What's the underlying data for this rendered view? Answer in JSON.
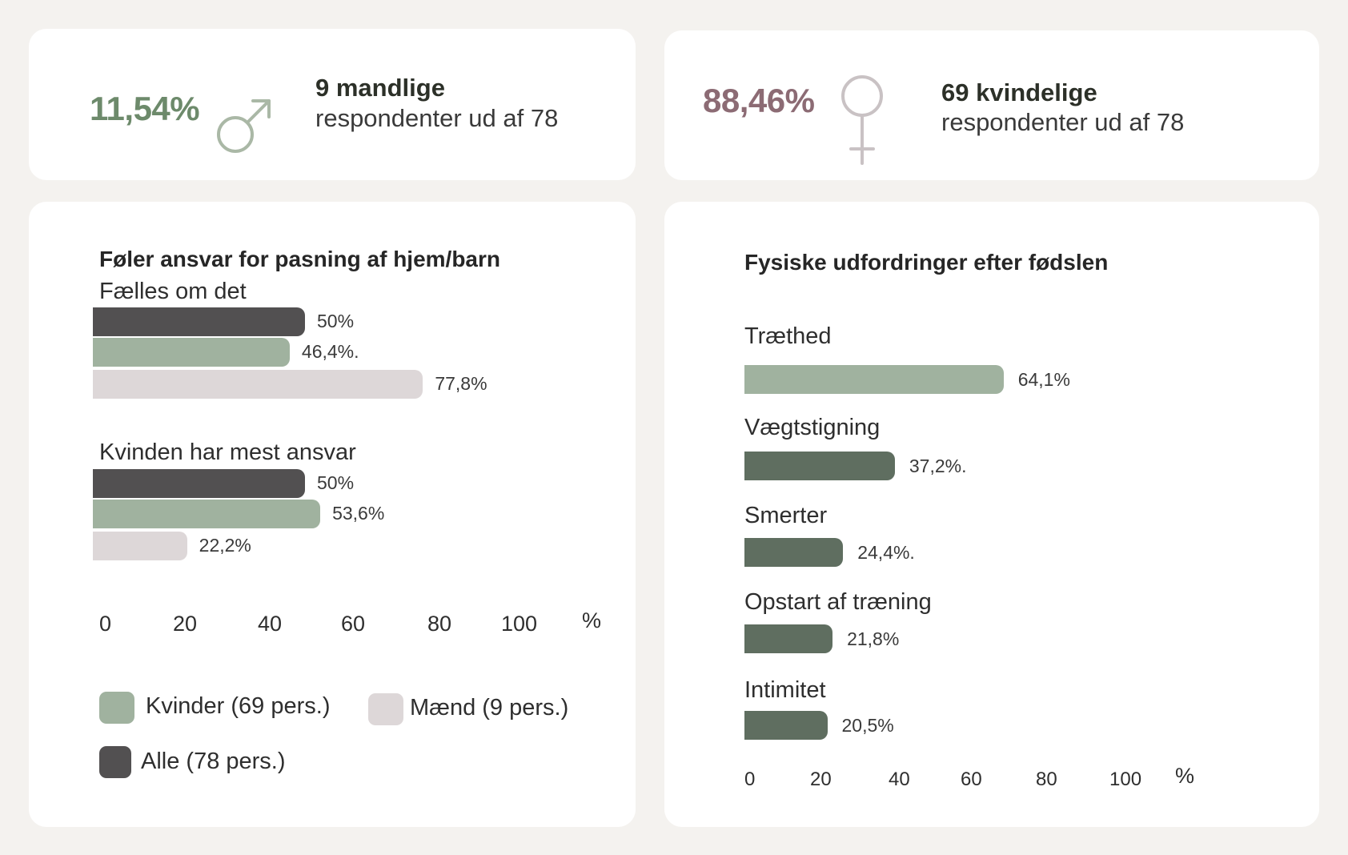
{
  "stats": {
    "male": {
      "percent": "11,54%",
      "count_label": "9 mandlige",
      "sub_label": "respondenter ud af 78",
      "color": "#6d8a6b",
      "icon": "male-symbol-icon"
    },
    "female": {
      "percent": "88,46%",
      "count_label": "69 kvindelige",
      "sub_label": "respondenter ud af 78",
      "color": "#8c6b74",
      "icon": "female-symbol-icon"
    }
  },
  "colors": {
    "alle": "#525051",
    "kvinder": "#a0b29f",
    "maend": "#ddd7d8",
    "fysiske": "#5f6e60",
    "icon_stroke": "#aab8a6",
    "female_icon_stroke": "#c9c2c4"
  },
  "chart_data": [
    {
      "type": "bar",
      "orientation": "horizontal",
      "title": "Føler ansvar for pasning af hjem/barn",
      "categories": [
        "Fælles om det",
        "Kvinden har mest ansvar"
      ],
      "series": [
        {
          "name": "Alle (78 pers.)",
          "values": [
            50,
            50
          ],
          "labels": [
            "50%",
            "50%"
          ]
        },
        {
          "name": "Kvinder (69 pers.)",
          "values": [
            46.4,
            53.6
          ],
          "labels": [
            "46,4%.",
            "53,6%"
          ]
        },
        {
          "name": "Mænd (9 pers.)",
          "values": [
            77.8,
            22.2
          ],
          "labels": [
            "77,8%",
            "22,2%"
          ]
        }
      ],
      "xlim": [
        0,
        100
      ],
      "xticks": [
        "0",
        "20",
        "40",
        "60",
        "80",
        "100"
      ],
      "xunit": "%",
      "legend": [
        {
          "label": "Kvinder (69 pers.)",
          "series": "kvinder"
        },
        {
          "label": "Mænd (9 pers.)",
          "series": "maend"
        },
        {
          "label": "Alle (78 pers.)",
          "series": "alle"
        }
      ],
      "legend_position": "bottom"
    },
    {
      "type": "bar",
      "orientation": "horizontal",
      "title": "Fysiske udfordringer efter fødslen",
      "categories": [
        "Træthed",
        "Vægtstigning",
        "Smerter",
        "Opstart af træning",
        "Intimitet"
      ],
      "values": [
        64.1,
        37.2,
        24.4,
        21.8,
        20.5
      ],
      "labels": [
        "64,1%",
        "37,2%.",
        "24,4%.",
        "21,8%",
        "20,5%"
      ],
      "highlight_index": 0,
      "xlim": [
        0,
        100
      ],
      "xticks": [
        "0",
        "20",
        "40",
        "60",
        "80",
        "100"
      ],
      "xunit": "%"
    }
  ]
}
